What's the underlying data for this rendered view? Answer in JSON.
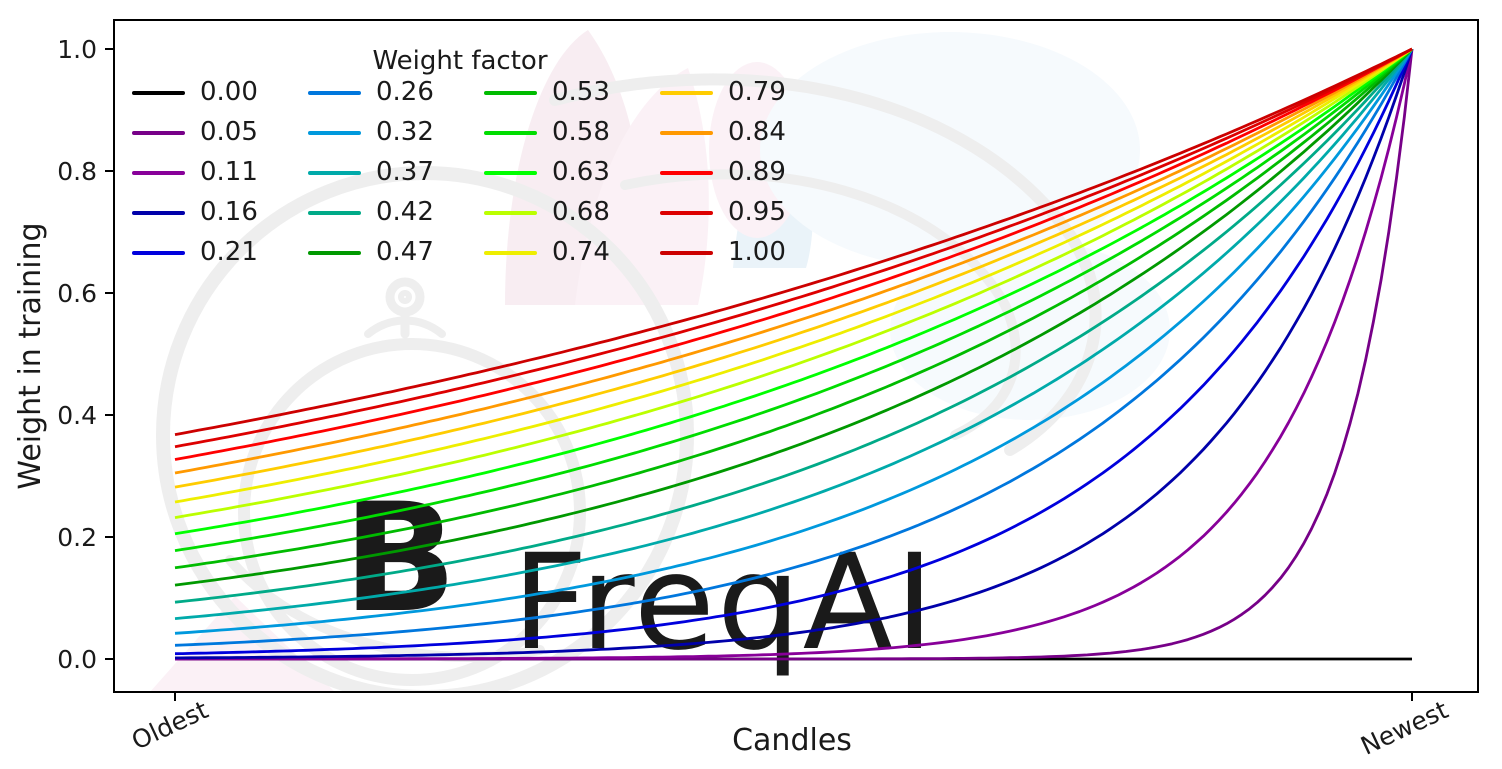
{
  "figure": {
    "background": "#ffffff",
    "watermark": {
      "text": "FreqAI",
      "text_color": "#ededed",
      "logo_color": "#eeeeee",
      "petal_pink": "#f8edf2",
      "petal_pink_light": "#fbf1f6",
      "petal_blue": "#eaf3f9",
      "haze_blue": "#f6fafd"
    }
  },
  "chart_data": {
    "type": "line",
    "title": "",
    "xlabel": "Candles",
    "ylabel": "Weight in training",
    "x_tick_labels": [
      "Oldest",
      "Newest"
    ],
    "y_ticks": [
      0.0,
      0.2,
      0.4,
      0.6,
      0.8,
      1.0
    ],
    "y_tick_labels": [
      "0.0",
      "0.2",
      "0.4",
      "0.6",
      "0.8",
      "1.0"
    ],
    "ylim": [
      0,
      1
    ],
    "grid": false,
    "legend_title": "Weight factor",
    "legend_columns": 4,
    "legend_rows": 5,
    "legend_position": "upper left",
    "curve_formula": "weight(x) = exp(-(1 - x) / factor) for x in [0,1] (Oldest..Newest); factor 0 gives a flat line at 0",
    "series": [
      {
        "label": "0.00",
        "factor": 0.0,
        "color": "#000000",
        "start_value": 0.0,
        "end_value": 0.0
      },
      {
        "label": "0.05",
        "factor": 0.0526,
        "color": "#770088",
        "start_value": 0.0,
        "end_value": 1.0
      },
      {
        "label": "0.11",
        "factor": 0.1053,
        "color": "#880099",
        "start_value": 0.0001,
        "end_value": 1.0
      },
      {
        "label": "0.16",
        "factor": 0.1579,
        "color": "#0000aa",
        "start_value": 0.0018,
        "end_value": 1.0
      },
      {
        "label": "0.21",
        "factor": 0.2105,
        "color": "#0000dd",
        "start_value": 0.0087,
        "end_value": 1.0
      },
      {
        "label": "0.26",
        "factor": 0.2632,
        "color": "#0077dd",
        "start_value": 0.0222,
        "end_value": 1.0
      },
      {
        "label": "0.32",
        "factor": 0.3158,
        "color": "#0099dd",
        "start_value": 0.0421,
        "end_value": 1.0
      },
      {
        "label": "0.37",
        "factor": 0.3684,
        "color": "#00aaaa",
        "start_value": 0.0662,
        "end_value": 1.0
      },
      {
        "label": "0.42",
        "factor": 0.4211,
        "color": "#00aa88",
        "start_value": 0.0933,
        "end_value": 1.0
      },
      {
        "label": "0.47",
        "factor": 0.4737,
        "color": "#009900",
        "start_value": 0.121,
        "end_value": 1.0
      },
      {
        "label": "0.53",
        "factor": 0.5263,
        "color": "#00bb00",
        "start_value": 0.1496,
        "end_value": 1.0
      },
      {
        "label": "0.58",
        "factor": 0.5789,
        "color": "#00dd00",
        "start_value": 0.1778,
        "end_value": 1.0
      },
      {
        "label": "0.63",
        "factor": 0.6316,
        "color": "#00ff00",
        "start_value": 0.2053,
        "end_value": 1.0
      },
      {
        "label": "0.68",
        "factor": 0.6842,
        "color": "#bbff00",
        "start_value": 0.2318,
        "end_value": 1.0
      },
      {
        "label": "0.74",
        "factor": 0.7368,
        "color": "#eeee00",
        "start_value": 0.2573,
        "end_value": 1.0
      },
      {
        "label": "0.79",
        "factor": 0.7895,
        "color": "#ffcc00",
        "start_value": 0.2817,
        "end_value": 1.0
      },
      {
        "label": "0.84",
        "factor": 0.8421,
        "color": "#ff9900",
        "start_value": 0.305,
        "end_value": 1.0
      },
      {
        "label": "0.89",
        "factor": 0.8947,
        "color": "#ff0000",
        "start_value": 0.3271,
        "end_value": 1.0
      },
      {
        "label": "0.95",
        "factor": 0.9474,
        "color": "#dd0000",
        "start_value": 0.348,
        "end_value": 1.0
      },
      {
        "label": "1.00",
        "factor": 1.0,
        "color": "#cc0000",
        "start_value": 0.3679,
        "end_value": 1.0
      }
    ]
  }
}
